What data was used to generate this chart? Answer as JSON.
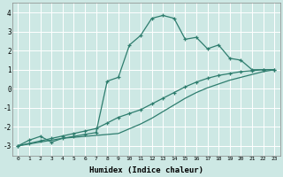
{
  "xlabel": "Humidex (Indice chaleur)",
  "bg_color": "#cde8e4",
  "line_color": "#2e7d6e",
  "grid_color": "#ffffff",
  "xlim": [
    -0.5,
    23.5
  ],
  "ylim": [
    -3.5,
    4.5
  ],
  "yticks": [
    -3,
    -2,
    -1,
    0,
    1,
    2,
    3,
    4
  ],
  "xticks": [
    0,
    1,
    2,
    3,
    4,
    5,
    6,
    7,
    8,
    9,
    10,
    11,
    12,
    13,
    14,
    15,
    16,
    17,
    18,
    19,
    20,
    21,
    22,
    23
  ],
  "curve1_x": [
    0,
    1,
    2,
    3,
    4,
    5,
    6,
    7,
    8,
    9,
    10,
    11,
    12,
    13,
    14,
    15,
    16,
    17,
    18,
    19,
    20,
    21,
    22,
    23
  ],
  "curve1_y": [
    -3.0,
    -2.7,
    -2.5,
    -2.8,
    -2.6,
    -2.5,
    -2.4,
    -2.3,
    0.4,
    0.6,
    2.3,
    2.8,
    3.7,
    3.85,
    3.7,
    2.6,
    2.7,
    2.1,
    2.3,
    1.6,
    1.5,
    1.0,
    1.0,
    1.0
  ],
  "curve2_x": [
    0,
    1,
    2,
    3,
    4,
    5,
    6,
    7,
    8,
    9,
    10,
    11,
    12,
    13,
    14,
    15,
    16,
    17,
    18,
    19,
    20,
    21,
    22,
    23
  ],
  "curve2_y": [
    -3.0,
    -2.87,
    -2.74,
    -2.61,
    -2.48,
    -2.35,
    -2.22,
    -2.09,
    -1.8,
    -1.5,
    -1.3,
    -1.1,
    -0.8,
    -0.5,
    -0.2,
    0.1,
    0.35,
    0.55,
    0.7,
    0.8,
    0.9,
    0.95,
    1.0,
    1.0
  ],
  "curve3_x": [
    0,
    1,
    2,
    3,
    4,
    5,
    6,
    7,
    8,
    9,
    10,
    11,
    12,
    13,
    14,
    15,
    16,
    17,
    18,
    19,
    20,
    21,
    22,
    23
  ],
  "curve3_y": [
    -3.0,
    -2.9,
    -2.8,
    -2.7,
    -2.6,
    -2.55,
    -2.5,
    -2.45,
    -2.4,
    -2.35,
    -2.1,
    -1.85,
    -1.55,
    -1.2,
    -0.85,
    -0.5,
    -0.2,
    0.05,
    0.25,
    0.45,
    0.6,
    0.75,
    0.9,
    1.0
  ]
}
